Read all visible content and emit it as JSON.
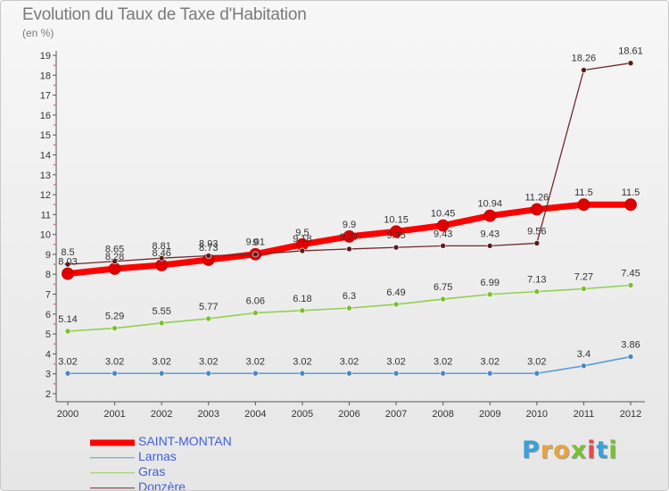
{
  "title": "Evolution du Taux de Taxe d'Habitation",
  "unit": "(en %)",
  "logo": {
    "letters": [
      "P",
      "r",
      "o",
      "x",
      "i",
      "t",
      "i"
    ],
    "colors": [
      "#3aa0d8",
      "#e8a33a",
      "#e8a33a",
      "#7abf2f",
      "#e24b4b",
      "#3aa0d8",
      "#7abf2f"
    ]
  },
  "chart_data": {
    "type": "line",
    "title": "Evolution du Taux de Taxe d'Habitation",
    "ylabel": "(en %)",
    "xlabel": "",
    "ylim": [
      2,
      19
    ],
    "yticks": [
      "2",
      "3",
      "4",
      "5",
      "6",
      "7",
      "8",
      "9",
      "10",
      "11",
      "12",
      "13",
      "14",
      "15",
      "16",
      "17",
      "18",
      "19"
    ],
    "x": [
      "2000",
      "2001",
      "2002",
      "2003",
      "2004",
      "2005",
      "2006",
      "2007",
      "2008",
      "2009",
      "2010",
      "2011",
      "2012"
    ],
    "grid": false,
    "legend_position": "bottom-left",
    "series": [
      {
        "name": "SAINT-MONTAN",
        "color": "#ff0000",
        "values": [
          8.03,
          8.28,
          8.46,
          8.73,
          9.01,
          9.5,
          9.9,
          10.15,
          10.45,
          10.94,
          11.26,
          11.5,
          11.5
        ],
        "labels": [
          "8.03",
          "8.28",
          "8.46",
          "8.73",
          "9.01",
          "9.5",
          "9.9",
          "10.15",
          "10.45",
          "10.94",
          "11.26",
          "11.5",
          "11.5"
        ]
      },
      {
        "name": "Larnas",
        "color": "#5b9bd5",
        "values": [
          3.02,
          3.02,
          3.02,
          3.02,
          3.02,
          3.02,
          3.02,
          3.02,
          3.02,
          3.02,
          3.02,
          3.4,
          3.86
        ],
        "labels": [
          "3.02",
          "3.02",
          "3.02",
          "3.02",
          "3.02",
          "3.02",
          "3.02",
          "3.02",
          "3.02",
          "3.02",
          "3.02",
          "3.4",
          "3.86"
        ]
      },
      {
        "name": "Gras",
        "color": "#92d050",
        "values": [
          5.14,
          5.29,
          5.55,
          5.77,
          6.06,
          6.18,
          6.3,
          6.49,
          6.75,
          6.99,
          7.13,
          7.27,
          7.45
        ],
        "labels": [
          "5.14",
          "5.29",
          "5.55",
          "5.77",
          "6.06",
          "6.18",
          "6.3",
          "6.49",
          "6.75",
          "6.99",
          "7.13",
          "7.27",
          "7.45"
        ]
      },
      {
        "name": "Donzère",
        "color": "#6b2b2b",
        "values": [
          8.5,
          8.65,
          8.81,
          8.93,
          9,
          9.18,
          9.27,
          9.35,
          9.43,
          9.43,
          9.56,
          18.26,
          18.61
        ],
        "labels": [
          "8.5",
          "8.65",
          "8.81",
          "8.93",
          "9",
          "9.18",
          "9.27",
          "9.35",
          "9.43",
          "9.43",
          "9.56",
          "18.26",
          "18.61"
        ]
      }
    ]
  }
}
